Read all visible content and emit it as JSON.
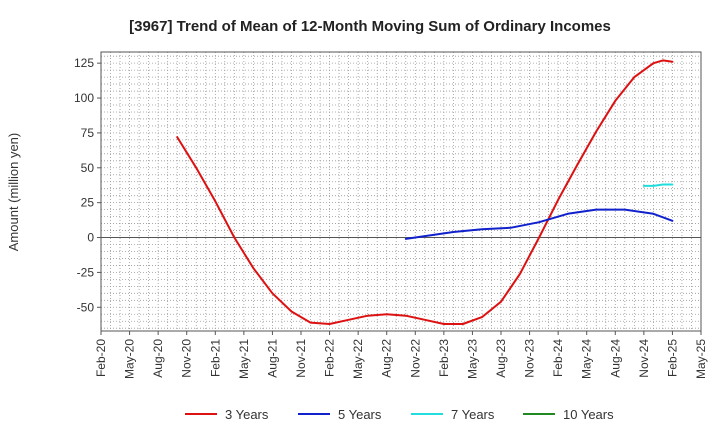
{
  "chart_data": {
    "type": "line",
    "title": "[3967]  Trend of Mean of 12-Month Moving Sum of Ordinary Incomes",
    "ylabel": "Amount (million yen)",
    "xlabel": "",
    "ylim": [
      -67,
      133
    ],
    "yticks": [
      125,
      100,
      75,
      50,
      25,
      0,
      -25,
      -50
    ],
    "xlim": [
      "2020-02",
      "2025-05"
    ],
    "x_tick_labels": [
      "Feb-20",
      "May-20",
      "Aug-20",
      "Nov-20",
      "Feb-21",
      "May-21",
      "Aug-21",
      "Nov-21",
      "Feb-22",
      "May-22",
      "Aug-22",
      "Nov-22",
      "Feb-23",
      "May-23",
      "Aug-23",
      "Nov-23",
      "Feb-24",
      "May-24",
      "Aug-24",
      "Nov-24",
      "Feb-25",
      "May-25"
    ],
    "grid": true,
    "series": [
      {
        "name": "3 Years",
        "color": "#dd1111",
        "points": [
          [
            "2020-10",
            72
          ],
          [
            "2020-12",
            50
          ],
          [
            "2021-02",
            26
          ],
          [
            "2021-04",
            0
          ],
          [
            "2021-06",
            -22
          ],
          [
            "2021-08",
            -40
          ],
          [
            "2021-10",
            -53
          ],
          [
            "2021-12",
            -61
          ],
          [
            "2022-02",
            -62
          ],
          [
            "2022-04",
            -59
          ],
          [
            "2022-06",
            -56
          ],
          [
            "2022-08",
            -55
          ],
          [
            "2022-10",
            -56
          ],
          [
            "2022-12",
            -59
          ],
          [
            "2023-02",
            -62
          ],
          [
            "2023-04",
            -62
          ],
          [
            "2023-06",
            -57
          ],
          [
            "2023-08",
            -46
          ],
          [
            "2023-10",
            -26
          ],
          [
            "2023-12",
            0
          ],
          [
            "2024-02",
            27
          ],
          [
            "2024-04",
            52
          ],
          [
            "2024-06",
            76
          ],
          [
            "2024-08",
            98
          ],
          [
            "2024-10",
            115
          ],
          [
            "2024-12",
            125
          ],
          [
            "2025-01",
            127
          ],
          [
            "2025-02",
            126
          ]
        ]
      },
      {
        "name": "5 Years",
        "color": "#1122cc",
        "points": [
          [
            "2022-10",
            -1
          ],
          [
            "2022-12",
            1
          ],
          [
            "2023-03",
            4
          ],
          [
            "2023-06",
            6
          ],
          [
            "2023-09",
            7
          ],
          [
            "2023-12",
            11
          ],
          [
            "2024-03",
            17
          ],
          [
            "2024-06",
            20
          ],
          [
            "2024-09",
            20
          ],
          [
            "2024-12",
            17
          ],
          [
            "2025-02",
            12
          ]
        ]
      },
      {
        "name": "7 Years",
        "color": "#22dddd",
        "points": [
          [
            "2024-11",
            37
          ],
          [
            "2024-12",
            37
          ],
          [
            "2025-01",
            38
          ],
          [
            "2025-02",
            38
          ]
        ]
      },
      {
        "name": "10 Years",
        "color": "#228822",
        "points": []
      }
    ],
    "legend": {
      "placement": "bottom",
      "entries": [
        "3 Years",
        "5 Years",
        "7 Years",
        "10 Years"
      ]
    }
  }
}
